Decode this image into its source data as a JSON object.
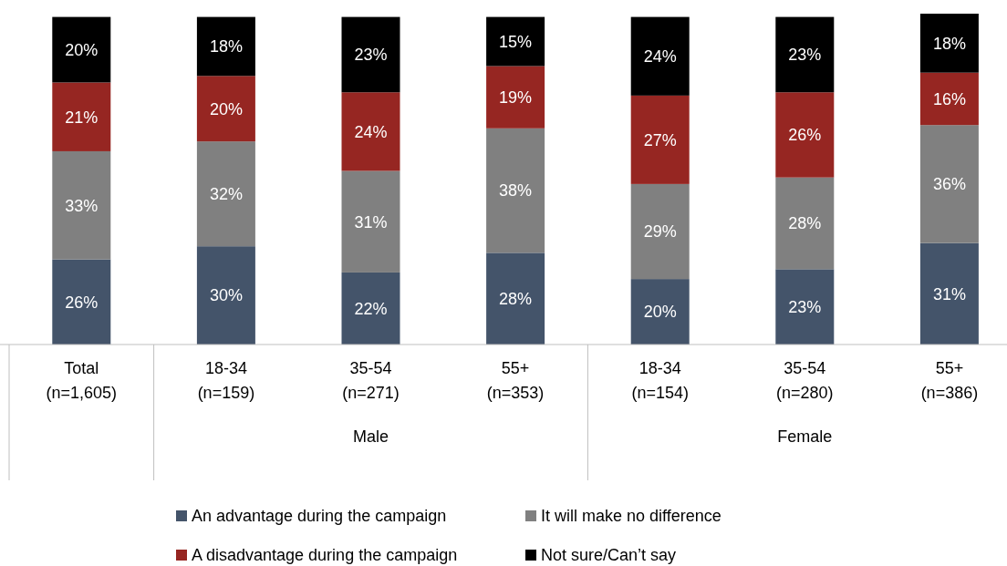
{
  "chart_data": {
    "type": "bar",
    "stacked": true,
    "legend": "bottom",
    "categories": [
      "Total (n=1,605)",
      "18-34 (n=159)",
      "35-54 (n=271)",
      "55+ (n=353)",
      "18-34 (n=154)",
      "35-54 (n=280)",
      "55+ (n=386)"
    ],
    "series": [
      {
        "name": "An advantage during the campaign",
        "color": "#44546a",
        "values": [
          26,
          30,
          22,
          28,
          20,
          23,
          31
        ],
        "value_labels": [
          "26%",
          "30%",
          "22%",
          "28%",
          "20%",
          "23%",
          "31%"
        ]
      },
      {
        "name": "It will make no difference",
        "color": "#808080",
        "values": [
          33,
          32,
          31,
          38,
          29,
          28,
          36
        ],
        "value_labels": [
          "33%",
          "32%",
          "31%",
          "38%",
          "29%",
          "28%",
          "36%"
        ]
      },
      {
        "name": "A disadvantage during the campaign",
        "color": "#962622",
        "values": [
          21,
          20,
          24,
          19,
          27,
          26,
          16
        ],
        "value_labels": [
          "21%",
          "20%",
          "24%",
          "19%",
          "27%",
          "26%",
          "16%"
        ]
      },
      {
        "name": "Not sure/Can’t say",
        "color": "#000000",
        "values": [
          20,
          18,
          23,
          15,
          24,
          23,
          18
        ],
        "value_labels": [
          "20%",
          "18%",
          "23%",
          "15%",
          "24%",
          "23%",
          "18%"
        ]
      }
    ],
    "annotations": [
      "Male",
      "Female"
    ]
  }
}
